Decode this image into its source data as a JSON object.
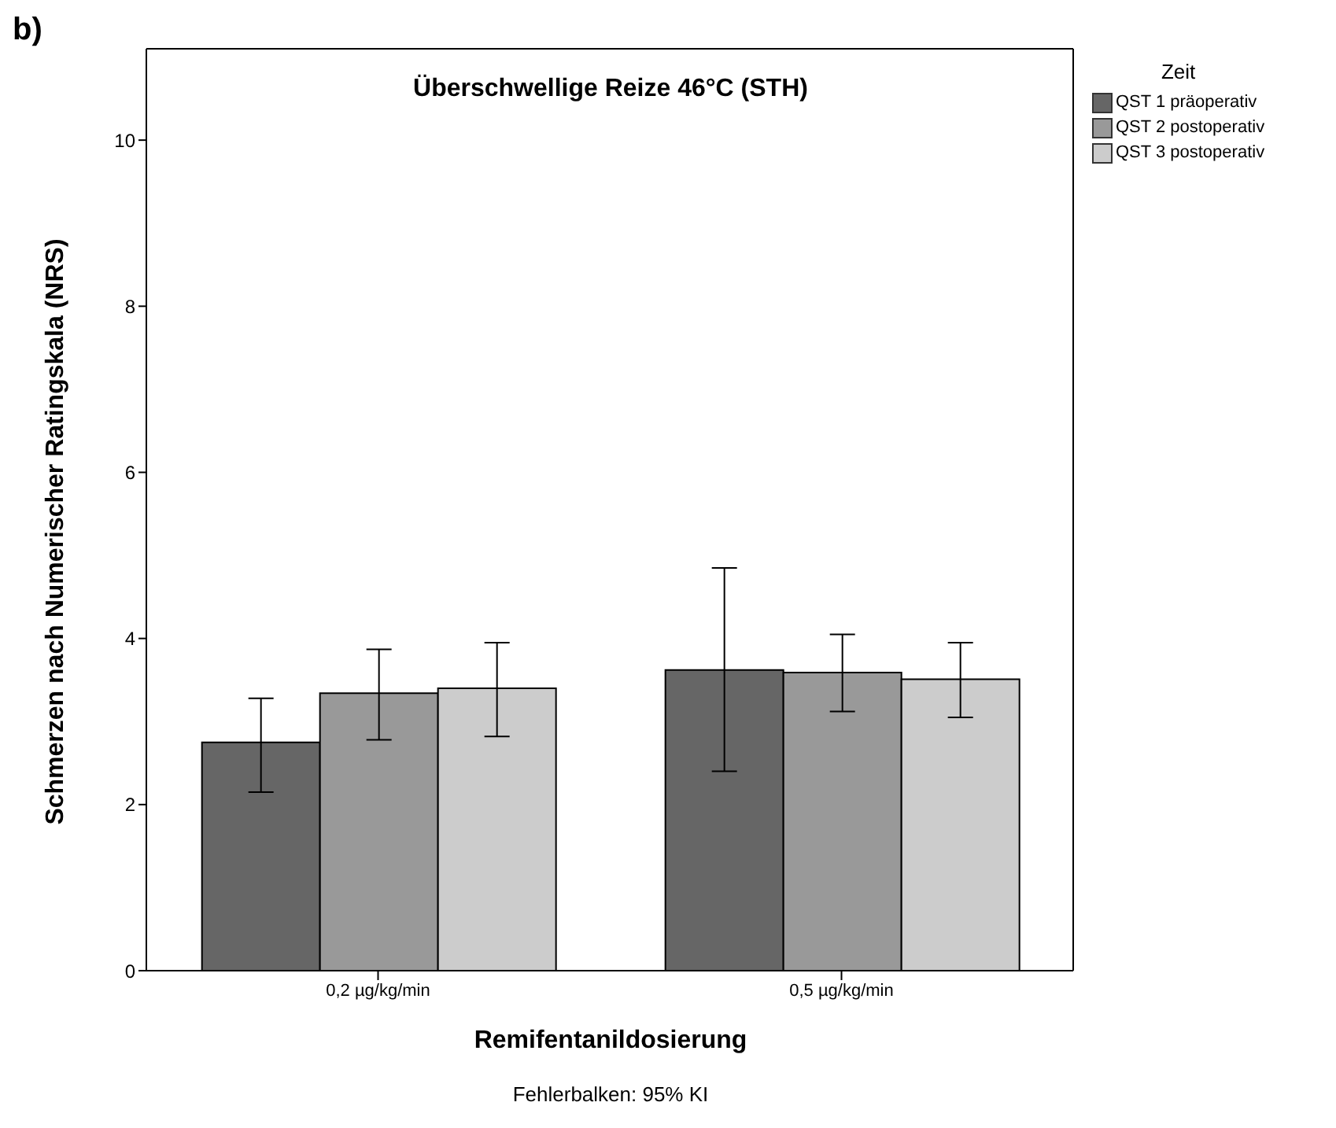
{
  "chart_data": {
    "type": "bar",
    "title": "Überschwellige Reize 46°C (STH)",
    "xlabel": "Remifentanildosierung",
    "ylabel": "Schmerzen nach Numerischer Ratingskala (NRS)",
    "legend_title": "Zeit",
    "legend": "top right",
    "grid": false,
    "categories": [
      "0,2 µg/kg/min",
      "0,5 µg/kg/min"
    ],
    "series": [
      {
        "name": "QST 1 präoperativ",
        "color": "#666666",
        "values": [
          2.75,
          3.62
        ],
        "errors": [
          [
            2.15,
            3.28
          ],
          [
            2.4,
            4.85
          ]
        ]
      },
      {
        "name": "QST 2 postoperativ",
        "color": "#999999",
        "values": [
          3.34,
          3.59
        ],
        "errors": [
          [
            2.78,
            3.87
          ],
          [
            3.12,
            4.05
          ]
        ]
      },
      {
        "name": "QST 3 postoperativ",
        "color": "#cccccc",
        "values": [
          3.4,
          3.51
        ],
        "errors": [
          [
            2.82,
            3.95
          ],
          [
            3.05,
            3.95
          ]
        ]
      }
    ],
    "ylim": [
      0,
      11.1
    ],
    "yticks": [
      0,
      2,
      4,
      6,
      8,
      10
    ],
    "annotations": [
      "b)",
      "Fehlerbalken: 95% KI"
    ]
  }
}
